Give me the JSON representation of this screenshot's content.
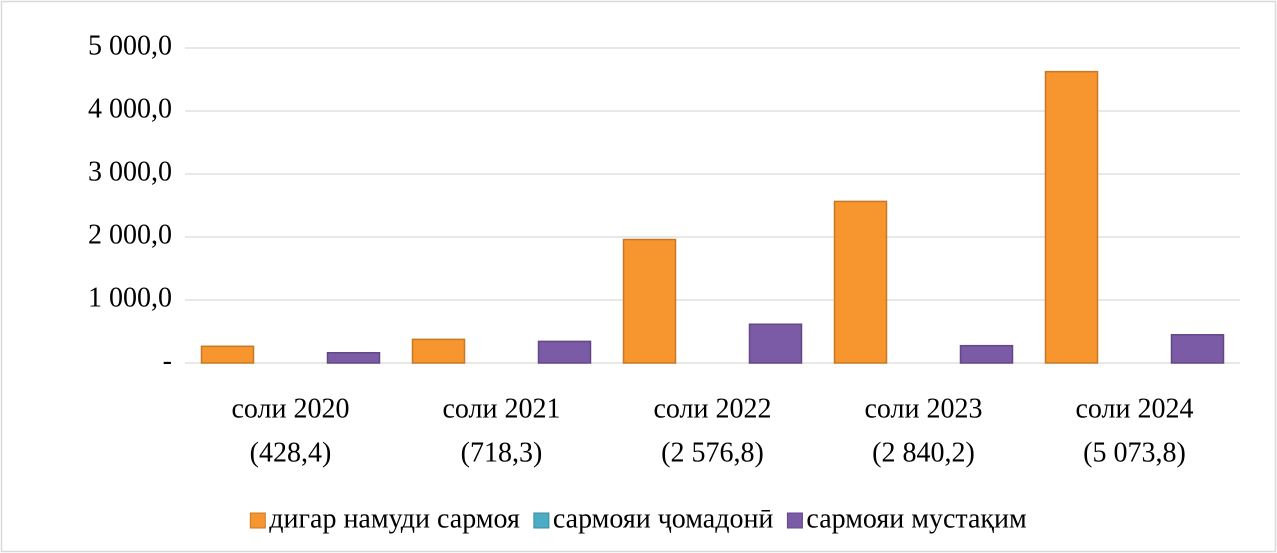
{
  "chart_data": {
    "type": "bar",
    "categories": [
      [
        "соли 2020",
        "(428,4)"
      ],
      [
        "соли 2021",
        "(718,3)"
      ],
      [
        "соли 2022",
        "(2 576,8)"
      ],
      [
        "соли 2023",
        "(2 840,2)"
      ],
      [
        "соли 2024",
        "(5 073,8)"
      ]
    ],
    "series": [
      {
        "name": "дигар намуди сармоя",
        "color": "#f7962f",
        "values": [
          265,
          375,
          1960,
          2565,
          4625
        ]
      },
      {
        "name": "сармояи ҷомадонӣ",
        "color": "#4bacc6",
        "values": [
          0,
          0,
          0,
          0,
          0
        ]
      },
      {
        "name": "сармояи мустақим",
        "color": "#7b5aa6",
        "values": [
          163,
          343,
          615,
          275,
          448
        ]
      }
    ],
    "ylim": [
      0,
      5000
    ],
    "yticks": [
      {
        "value": 0,
        "label": "-"
      },
      {
        "value": 1000,
        "label": "1 000,0"
      },
      {
        "value": 2000,
        "label": "2 000,0"
      },
      {
        "value": 3000,
        "label": "3 000,0"
      },
      {
        "value": 4000,
        "label": "4 000,0"
      },
      {
        "value": 5000,
        "label": "5 000,0"
      }
    ],
    "grid": true,
    "legend": "bottom"
  }
}
